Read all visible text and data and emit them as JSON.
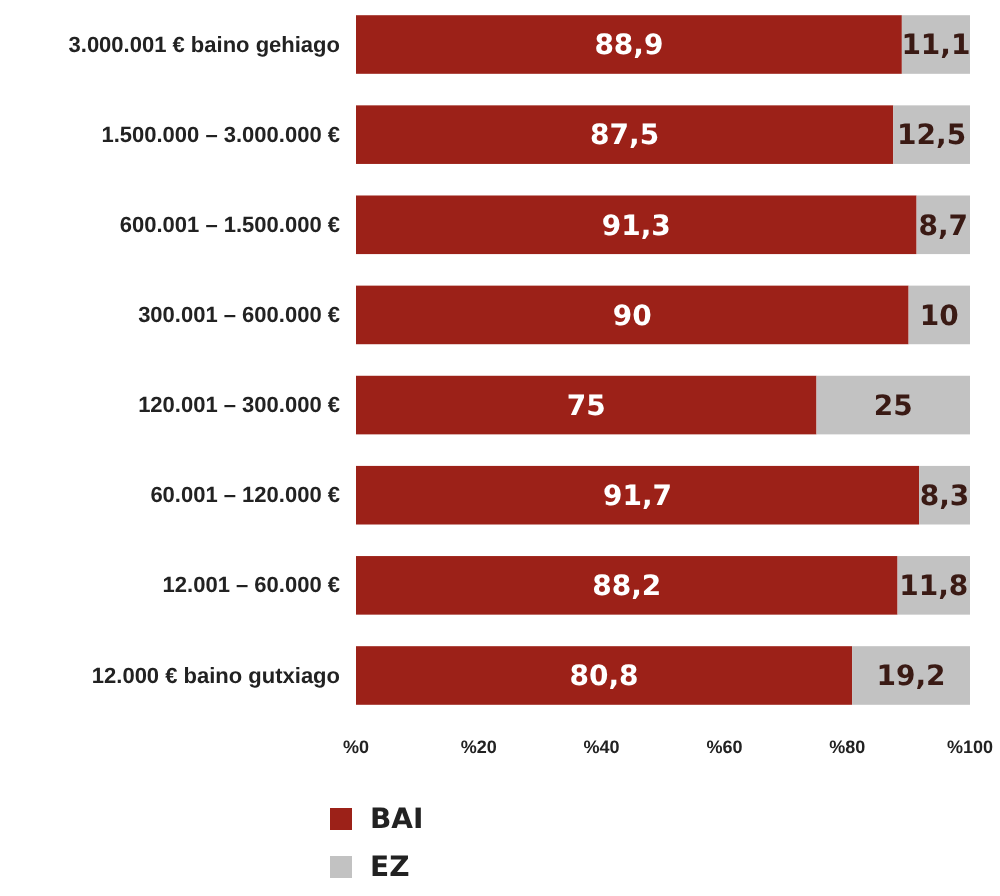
{
  "chart_data": {
    "type": "bar",
    "orientation": "horizontal",
    "stacked": true,
    "categories": [
      "3.000.001 € baino gehiago",
      "1.500.000 – 3.000.000 €",
      "600.001 – 1.500.000 €",
      "300.001 – 600.000 €",
      "120.001 – 300.000 €",
      "60.001 – 120.000 €",
      "12.001 – 60.000 €",
      "12.000 € baino gutxiago"
    ],
    "series": [
      {
        "name": "BAI",
        "color": "#9c2118",
        "values": [
          88.9,
          87.5,
          91.3,
          90,
          75,
          91.7,
          88.2,
          80.8
        ],
        "value_labels": [
          "88,9",
          "87,5",
          "91,3",
          "90",
          "75",
          "91,7",
          "88,2",
          "80,8"
        ]
      },
      {
        "name": "EZ",
        "color": "#c2c2c2",
        "values": [
          11.1,
          12.5,
          8.7,
          10,
          25,
          8.3,
          11.8,
          19.2
        ],
        "value_labels": [
          "11,1",
          "12,5",
          "8,7",
          "10",
          "25",
          "8,3",
          "11,8",
          "19,2"
        ]
      }
    ],
    "xlim": [
      0,
      100
    ],
    "xticks": [
      {
        "value": 0,
        "label": "%0"
      },
      {
        "value": 20,
        "label": "%20"
      },
      {
        "value": 40,
        "label": "%40"
      },
      {
        "value": 60,
        "label": "%60"
      },
      {
        "value": 80,
        "label": "%80"
      },
      {
        "value": 100,
        "label": "%100"
      }
    ],
    "grid": false,
    "legend": "bottom left"
  }
}
